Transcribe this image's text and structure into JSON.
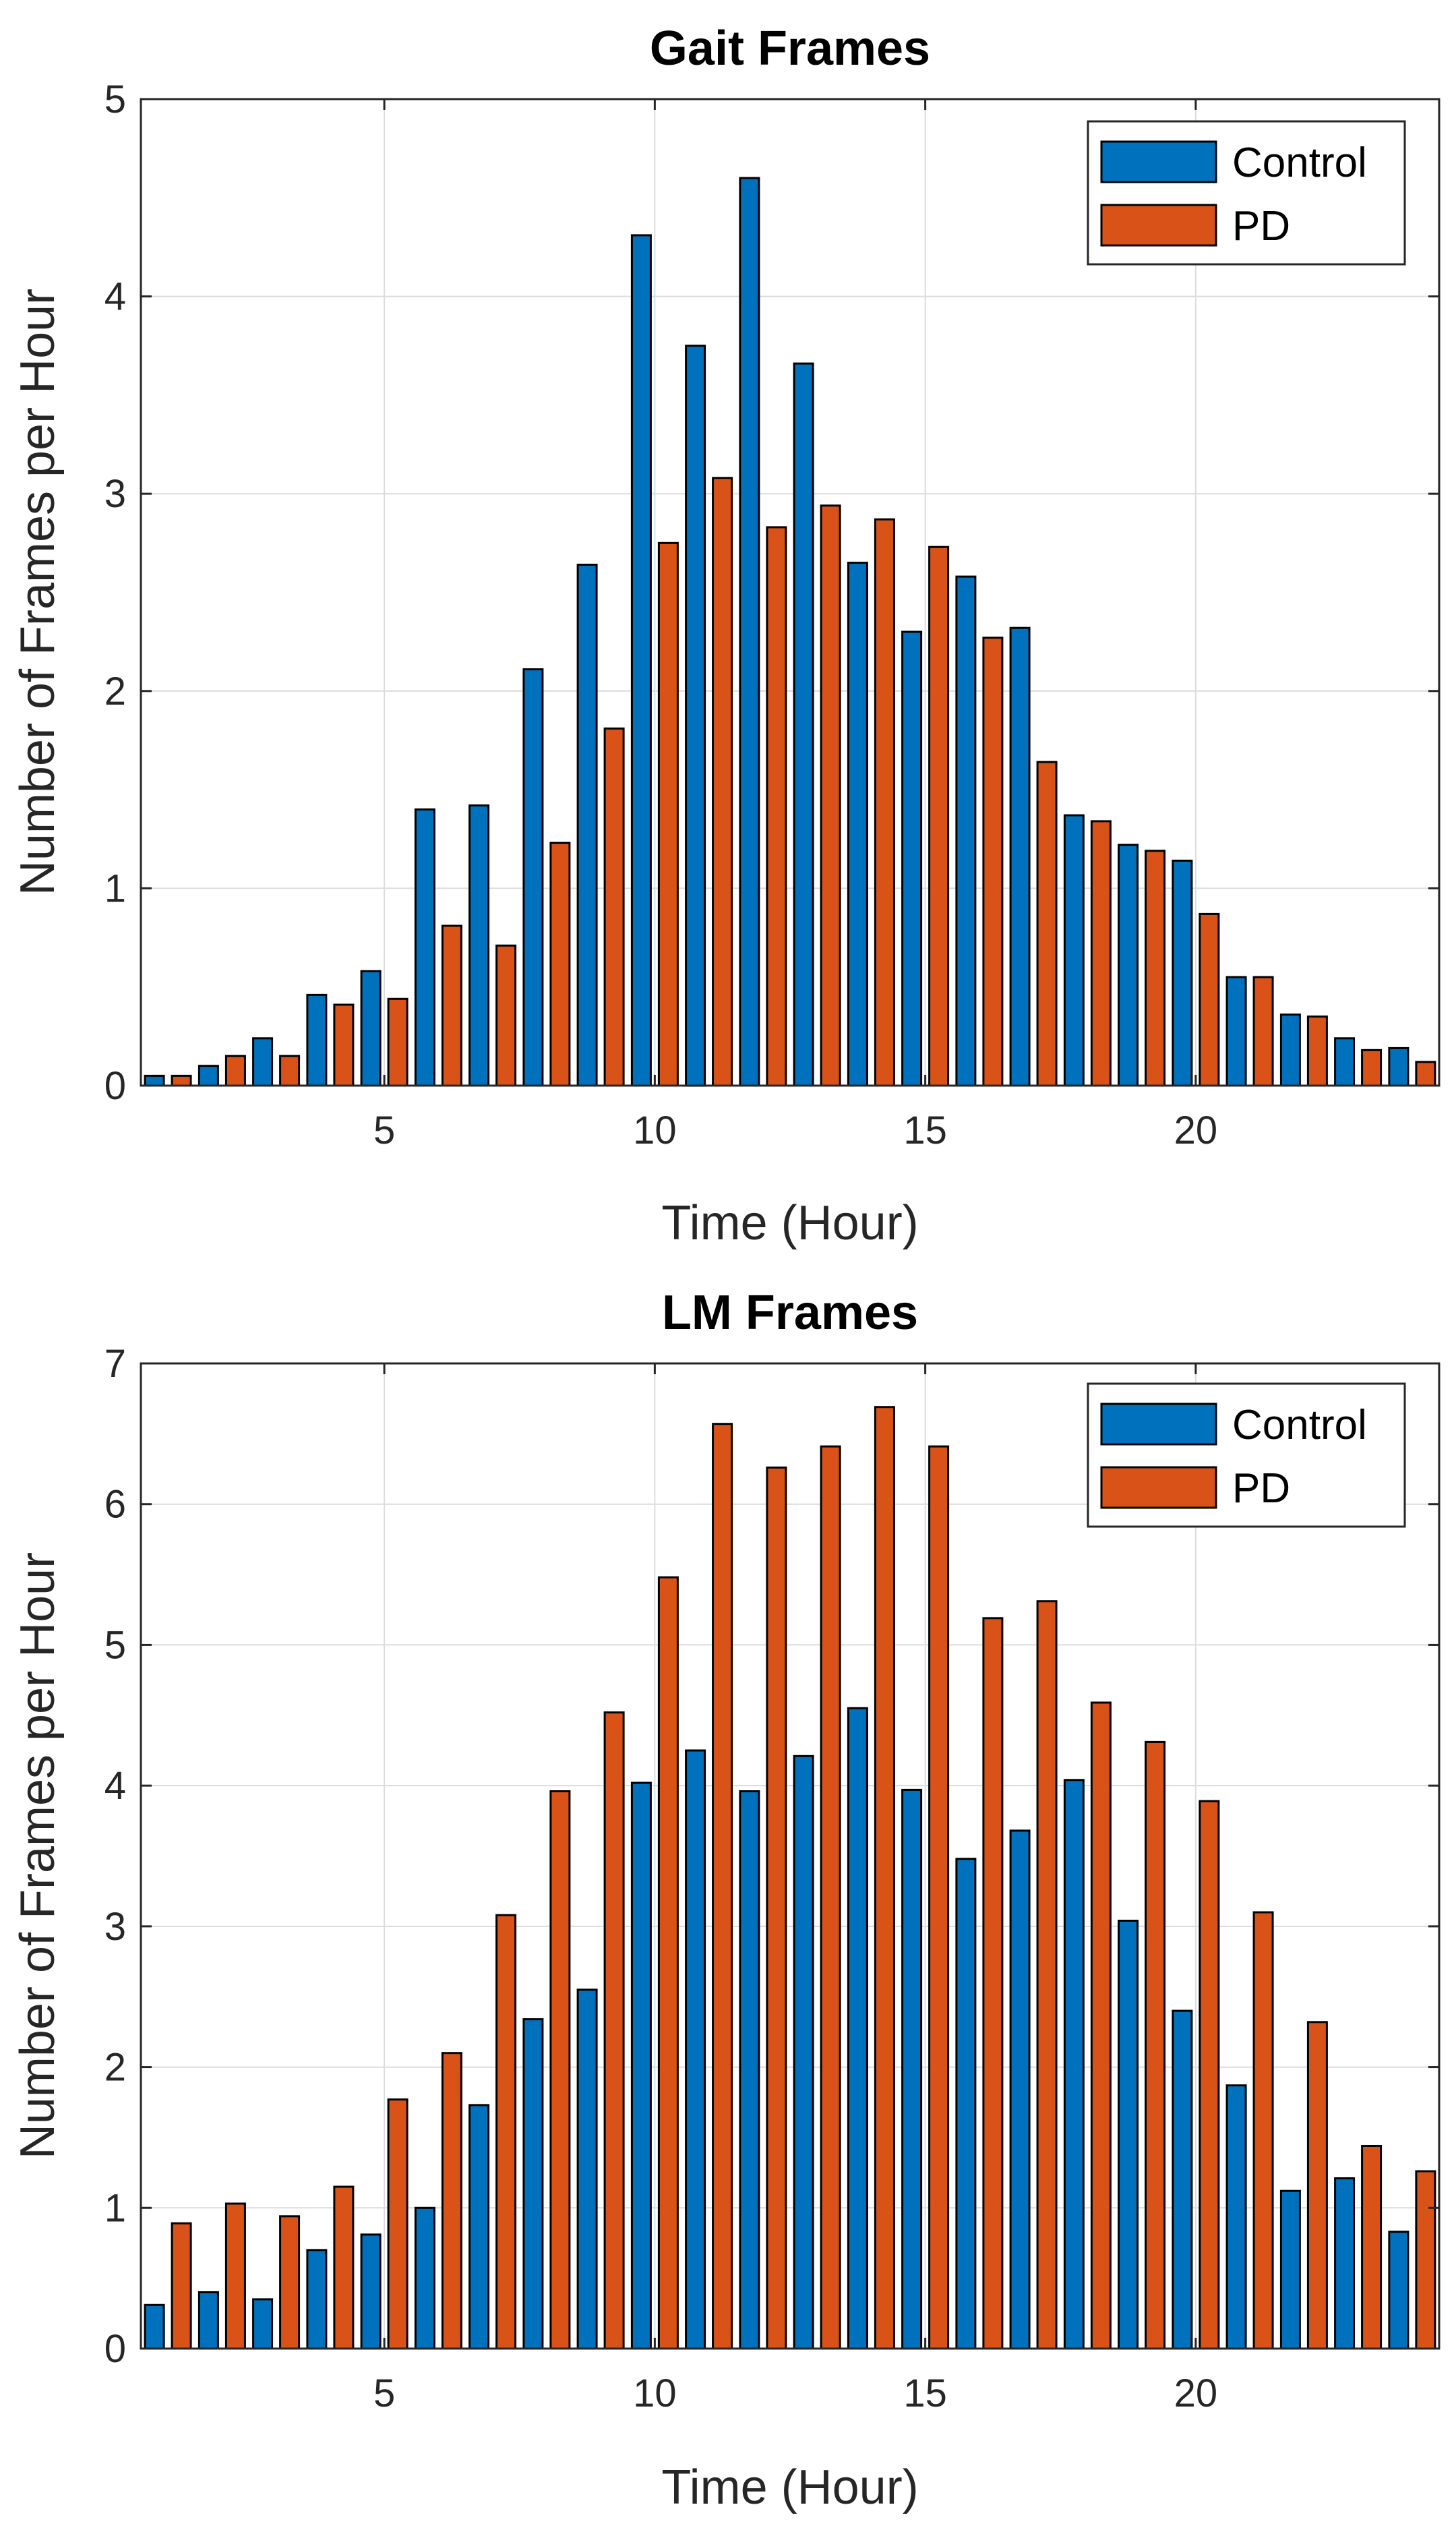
{
  "chart_data": [
    {
      "type": "bar",
      "title": "Gait Frames",
      "xlabel": "Time (Hour)",
      "ylabel": "Number of Frames per Hour",
      "xlim": [
        0.5,
        24.5
      ],
      "ylim": [
        0,
        5
      ],
      "xticks": [
        5,
        10,
        15,
        20
      ],
      "yticks": [
        0,
        1,
        2,
        3,
        4,
        5
      ],
      "grid": true,
      "legend_position": "top-right",
      "x": [
        1,
        2,
        3,
        4,
        5,
        6,
        7,
        8,
        9,
        10,
        11,
        12,
        13,
        14,
        15,
        16,
        17,
        18,
        19,
        20,
        21,
        22,
        23,
        24
      ],
      "series": [
        {
          "name": "Control",
          "color": "#0072BD",
          "values": [
            0.05,
            0.1,
            0.24,
            0.46,
            0.58,
            1.4,
            1.42,
            2.11,
            2.64,
            4.31,
            3.75,
            4.6,
            3.66,
            2.65,
            2.3,
            2.58,
            2.32,
            1.37,
            1.22,
            1.14,
            0.55,
            0.36,
            0.24,
            0.19
          ]
        },
        {
          "name": "PD",
          "color": "#D95319",
          "values": [
            0.05,
            0.15,
            0.15,
            0.41,
            0.44,
            0.81,
            0.71,
            1.23,
            1.81,
            2.75,
            3.08,
            2.83,
            2.94,
            2.87,
            2.73,
            2.27,
            1.64,
            1.34,
            1.19,
            0.87,
            0.55,
            0.35,
            0.18,
            0.12
          ]
        }
      ]
    },
    {
      "type": "bar",
      "title": "LM Frames",
      "xlabel": "Time (Hour)",
      "ylabel": "Number of Frames per Hour",
      "xlim": [
        0.5,
        24.5
      ],
      "ylim": [
        0,
        7
      ],
      "xticks": [
        5,
        10,
        15,
        20
      ],
      "yticks": [
        0,
        1,
        2,
        3,
        4,
        5,
        6,
        7
      ],
      "grid": true,
      "legend_position": "top-right",
      "x": [
        1,
        2,
        3,
        4,
        5,
        6,
        7,
        8,
        9,
        10,
        11,
        12,
        13,
        14,
        15,
        16,
        17,
        18,
        19,
        20,
        21,
        22,
        23,
        24
      ],
      "series": [
        {
          "name": "Control",
          "color": "#0072BD",
          "values": [
            0.31,
            0.4,
            0.35,
            0.7,
            0.81,
            1.0,
            1.73,
            2.34,
            2.55,
            4.02,
            4.25,
            3.96,
            4.21,
            4.55,
            3.97,
            3.48,
            3.68,
            4.04,
            3.04,
            2.4,
            1.87,
            1.12,
            1.21,
            0.83
          ]
        },
        {
          "name": "PD",
          "color": "#D95319",
          "values": [
            0.89,
            1.03,
            0.94,
            1.15,
            1.77,
            2.1,
            3.08,
            3.96,
            4.52,
            5.48,
            6.57,
            6.26,
            6.41,
            6.69,
            6.41,
            5.19,
            5.31,
            4.59,
            4.31,
            3.89,
            3.1,
            2.32,
            1.44,
            1.26
          ]
        }
      ]
    }
  ]
}
